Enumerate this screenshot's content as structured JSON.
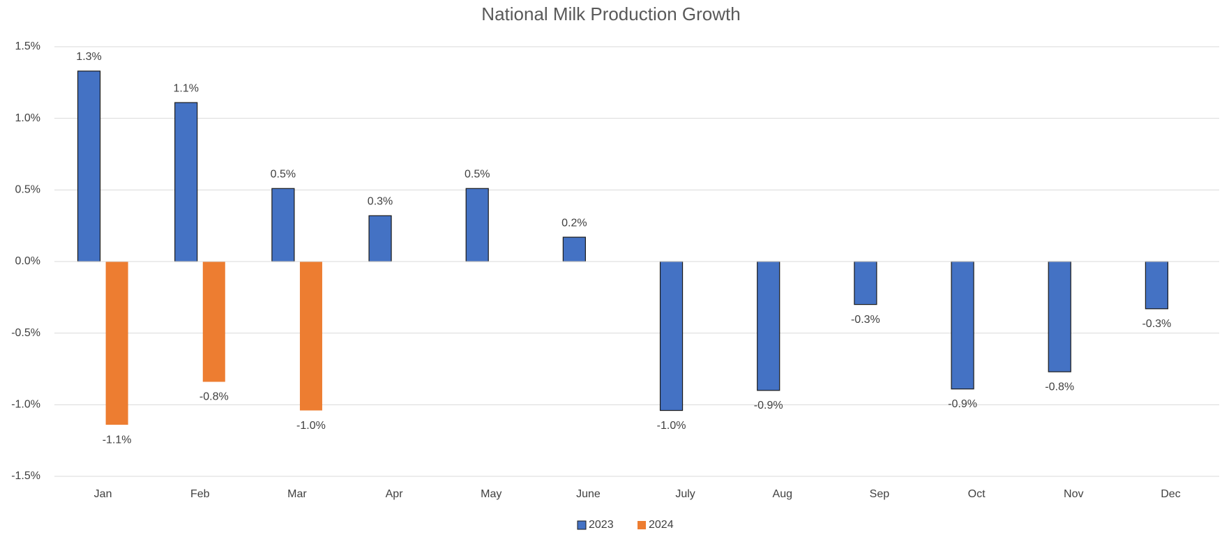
{
  "chart_data": {
    "type": "bar",
    "title": "National Milk Production Growth",
    "categories": [
      "Jan",
      "Feb",
      "Mar",
      "Apr",
      "May",
      "June",
      "July",
      "Aug",
      "Sep",
      "Oct",
      "Nov",
      "Dec"
    ],
    "series": [
      {
        "name": "2023",
        "color": "#4472c4",
        "values": [
          1.33,
          1.11,
          0.51,
          0.32,
          0.51,
          0.17,
          -1.04,
          -0.9,
          -0.3,
          -0.89,
          -0.77,
          -0.33
        ],
        "value_labels": [
          "1.3%",
          "1.1%",
          "0.5%",
          "0.3%",
          "0.5%",
          "0.2%",
          "-1.0%",
          "-0.9%",
          "-0.3%",
          "-0.9%",
          "-0.8%",
          "-0.3%"
        ]
      },
      {
        "name": "2024",
        "color": "#ed7d31",
        "values": [
          -1.14,
          -0.84,
          -1.04,
          null,
          null,
          null,
          null,
          null,
          null,
          null,
          null,
          null
        ],
        "value_labels": [
          "-1.1%",
          "-0.8%",
          "-1.0%",
          null,
          null,
          null,
          null,
          null,
          null,
          null,
          null,
          null
        ]
      }
    ],
    "ylim": [
      -1.5,
      1.5
    ],
    "yticks": [
      {
        "value": -1.5,
        "label": "-1.5%"
      },
      {
        "value": -1.0,
        "label": "-1.0%"
      },
      {
        "value": -0.5,
        "label": "-0.5%"
      },
      {
        "value": 0.0,
        "label": "0.0%"
      },
      {
        "value": 0.5,
        "label": "0.5%"
      },
      {
        "value": 1.0,
        "label": "1.0%"
      },
      {
        "value": 1.5,
        "label": "1.5%"
      }
    ],
    "grid": true,
    "legend": "bottom"
  }
}
